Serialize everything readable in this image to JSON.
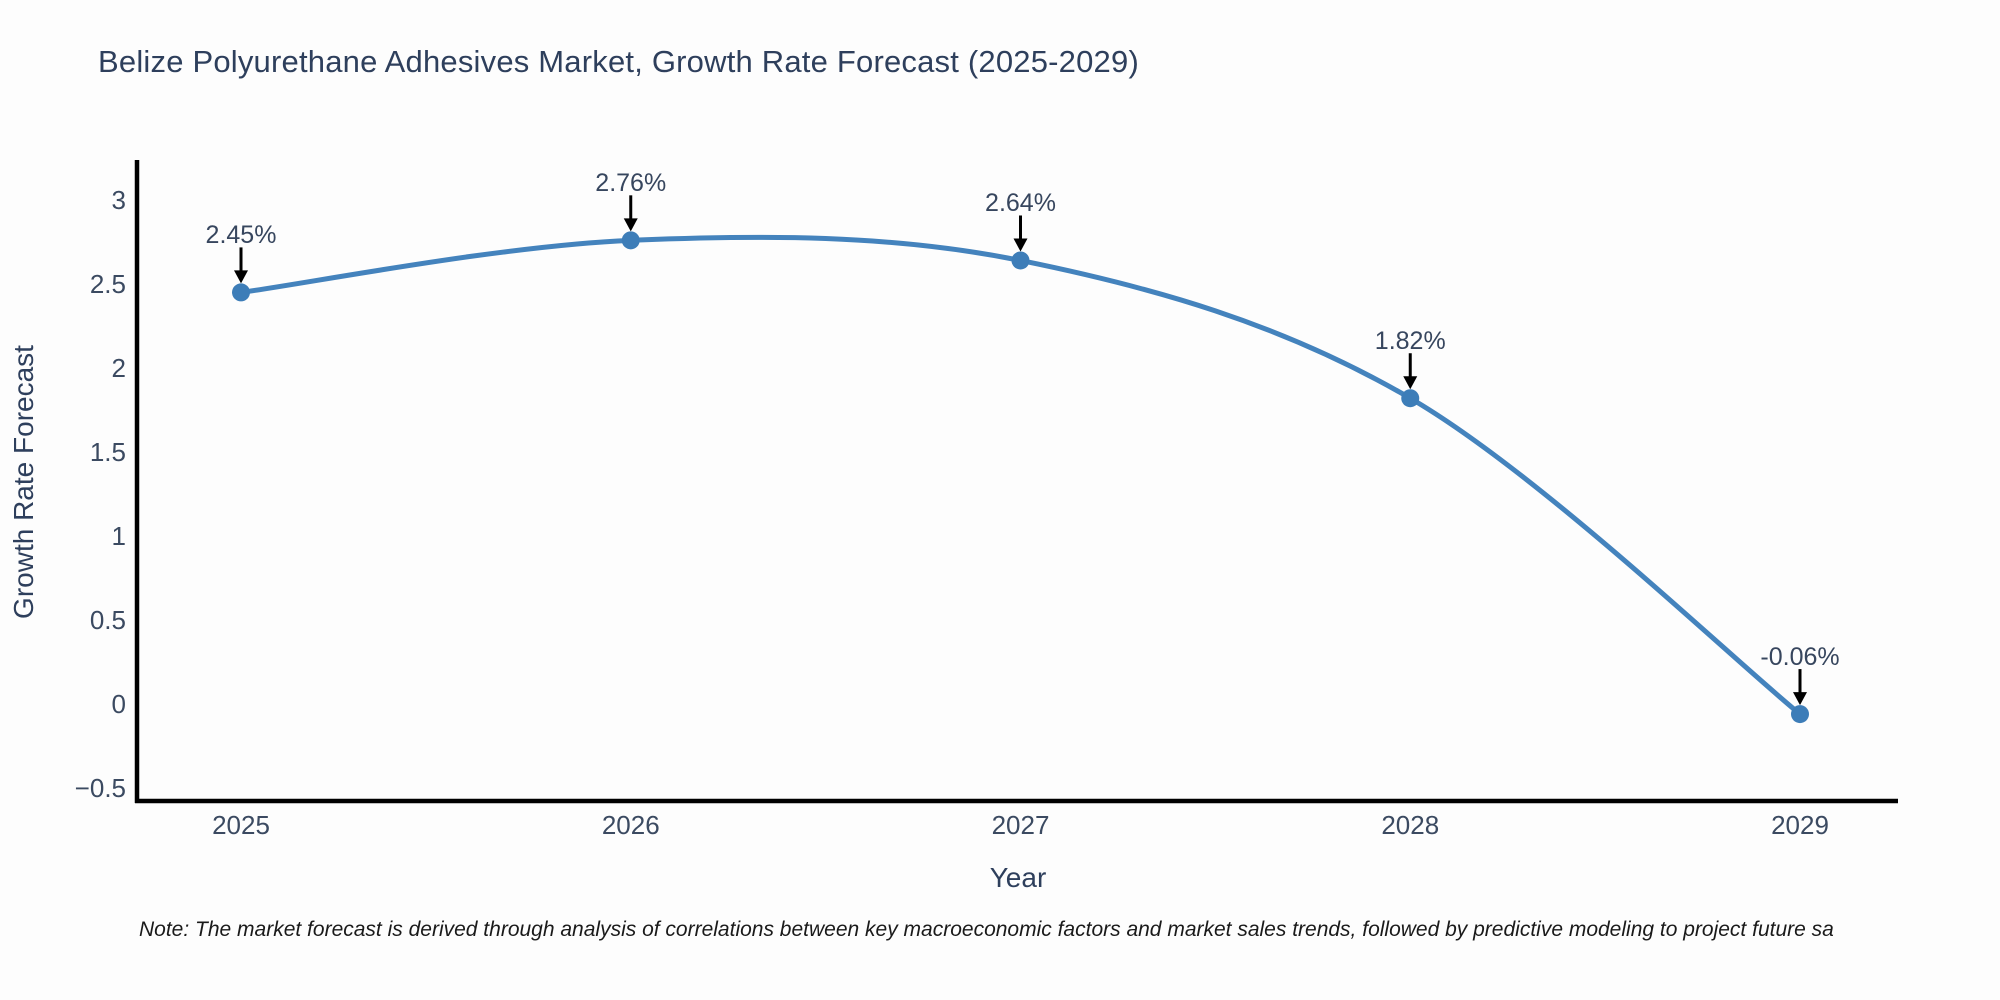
{
  "figure": {
    "note": "Note: The market forecast is derived through analysis of correlations between key macroeconomic factors and market sales trends, followed by predictive modeling to project future sa"
  },
  "chart_data": {
    "type": "line",
    "title": "Belize Polyurethane Adhesives Market, Growth Rate Forecast (2025-2029)",
    "xlabel": "Year",
    "ylabel": "Growth Rate Forecast",
    "x": [
      2025,
      2026,
      2027,
      2028,
      2029
    ],
    "xtick_labels": [
      "2025",
      "2026",
      "2027",
      "2028",
      "2029"
    ],
    "series": [
      {
        "name": "Growth Rate Forecast",
        "values": [
          2.45,
          2.76,
          2.64,
          1.82,
          -0.06
        ]
      }
    ],
    "point_labels": [
      "2.45%",
      "2.76%",
      "2.64%",
      "1.82%",
      "-0.06%"
    ],
    "ytick_values": [
      3,
      2.5,
      2,
      1.5,
      1,
      0.5,
      0,
      -0.5
    ],
    "ytick_labels": [
      "3",
      "2.5",
      "2",
      "1.5",
      "1",
      "0.5",
      "0",
      "−0.5"
    ],
    "xlim": [
      2024.73,
      2029.25
    ],
    "ylim": [
      -0.58,
      3.24
    ],
    "grid": false,
    "legend": "none",
    "curve": "spline",
    "line_color": "#4483bd",
    "marker_color": "#3d7db8",
    "axis_color": "#000000",
    "annotation_arrow_color": "#000000"
  }
}
